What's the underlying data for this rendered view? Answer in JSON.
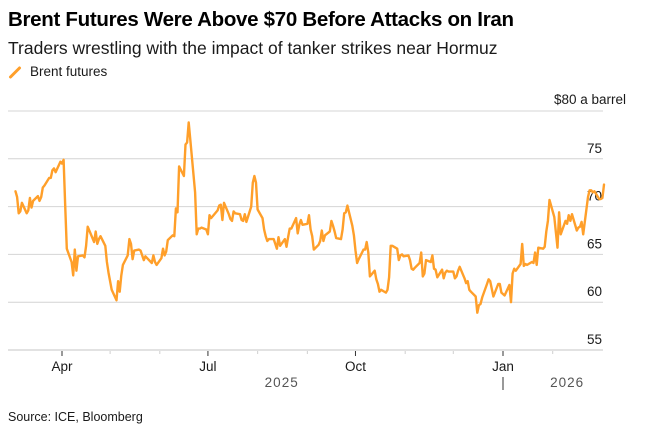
{
  "header": {
    "title": "Brent Futures Were Above $70 Before Attacks on Iran",
    "subtitle": "Traders wrestling with the impact of tanker strikes near Hormuz"
  },
  "legend": [
    {
      "label": "Brent futures",
      "color": "#ff9f2a",
      "icon": "line-slash-icon"
    }
  ],
  "footer": {
    "source": "Source: ICE, Bloomberg"
  },
  "chart_data": {
    "type": "line",
    "title": "Brent Futures Were Above $70 Before Attacks on Iran",
    "subtitle": "Traders wrestling with the impact of tanker strikes near Hormuz",
    "xlabel": "",
    "ylabel": "$ a barrel",
    "unit_label": "$80 a barrel",
    "ylim": [
      55,
      80
    ],
    "yticks": [
      55,
      60,
      65,
      70,
      75,
      80
    ],
    "ytick_labels": [
      "55",
      "60",
      "65",
      "70",
      "75",
      "$80 a barrel"
    ],
    "y_axis_side": "right",
    "grid": true,
    "xlim": [
      "2025-03-03",
      "2026-03-14"
    ],
    "xticks_major": [
      {
        "date": "2025-04-01",
        "label": "Apr"
      },
      {
        "date": "2025-07-01",
        "label": "Jul"
      },
      {
        "date": "2025-10-01",
        "label": "Oct"
      },
      {
        "date": "2026-01-01",
        "label": "Jan"
      }
    ],
    "xticks_minor": [
      "2025-05-01",
      "2025-06-01",
      "2025-08-01",
      "2025-09-01",
      "2025-11-01",
      "2025-12-01",
      "2026-02-01"
    ],
    "year_labels": [
      {
        "label": "2025",
        "center": "2025-08-16"
      },
      {
        "label": "2026",
        "center": "2026-02-10",
        "divider": "2026-01-01"
      }
    ],
    "legend_position": "top-left",
    "series": [
      {
        "name": "Brent futures",
        "color": "#ff9f2a",
        "points": [
          [
            "2025-03-03",
            71.6
          ],
          [
            "2025-03-04",
            71.0
          ],
          [
            "2025-03-05",
            69.3
          ],
          [
            "2025-03-06",
            69.5
          ],
          [
            "2025-03-07",
            70.4
          ],
          [
            "2025-03-10",
            69.3
          ],
          [
            "2025-03-11",
            69.6
          ],
          [
            "2025-03-12",
            70.9
          ],
          [
            "2025-03-13",
            69.9
          ],
          [
            "2025-03-14",
            70.6
          ],
          [
            "2025-03-17",
            71.1
          ],
          [
            "2025-03-18",
            70.6
          ],
          [
            "2025-03-19",
            71.0
          ],
          [
            "2025-03-20",
            72.0
          ],
          [
            "2025-03-21",
            72.2
          ],
          [
            "2025-03-24",
            73.0
          ],
          [
            "2025-03-25",
            73.0
          ],
          [
            "2025-03-26",
            73.8
          ],
          [
            "2025-03-27",
            74.0
          ],
          [
            "2025-03-28",
            73.6
          ],
          [
            "2025-03-31",
            74.7
          ],
          [
            "2025-04-01",
            74.5
          ],
          [
            "2025-04-02",
            74.9
          ],
          [
            "2025-04-03",
            70.1
          ],
          [
            "2025-04-04",
            65.6
          ],
          [
            "2025-04-07",
            64.2
          ],
          [
            "2025-04-08",
            62.8
          ],
          [
            "2025-04-09",
            65.5
          ],
          [
            "2025-04-10",
            63.3
          ],
          [
            "2025-04-11",
            64.8
          ],
          [
            "2025-04-14",
            64.9
          ],
          [
            "2025-04-15",
            64.7
          ],
          [
            "2025-04-16",
            65.9
          ],
          [
            "2025-04-17",
            67.9
          ],
          [
            "2025-04-21",
            66.3
          ],
          [
            "2025-04-22",
            67.4
          ],
          [
            "2025-04-23",
            66.1
          ],
          [
            "2025-04-24",
            66.6
          ],
          [
            "2025-04-25",
            66.9
          ],
          [
            "2025-04-28",
            65.9
          ],
          [
            "2025-04-29",
            64.2
          ],
          [
            "2025-04-30",
            63.1
          ],
          [
            "2025-05-02",
            61.3
          ],
          [
            "2025-05-05",
            60.2
          ],
          [
            "2025-05-06",
            62.2
          ],
          [
            "2025-05-07",
            61.1
          ],
          [
            "2025-05-08",
            62.8
          ],
          [
            "2025-05-09",
            63.9
          ],
          [
            "2025-05-12",
            64.9
          ],
          [
            "2025-05-13",
            66.6
          ],
          [
            "2025-05-14",
            66.1
          ],
          [
            "2025-05-15",
            64.5
          ],
          [
            "2025-05-16",
            65.4
          ],
          [
            "2025-05-19",
            65.5
          ],
          [
            "2025-05-20",
            65.4
          ],
          [
            "2025-05-21",
            64.9
          ],
          [
            "2025-05-22",
            64.4
          ],
          [
            "2025-05-23",
            64.8
          ],
          [
            "2025-05-27",
            64.1
          ],
          [
            "2025-05-28",
            64.9
          ],
          [
            "2025-05-29",
            64.2
          ],
          [
            "2025-05-30",
            63.9
          ],
          [
            "2025-06-02",
            64.6
          ],
          [
            "2025-06-03",
            65.6
          ],
          [
            "2025-06-04",
            64.9
          ],
          [
            "2025-06-05",
            65.3
          ],
          [
            "2025-06-06",
            66.5
          ],
          [
            "2025-06-09",
            67.0
          ],
          [
            "2025-06-10",
            66.9
          ],
          [
            "2025-06-11",
            69.8
          ],
          [
            "2025-06-12",
            69.4
          ],
          [
            "2025-06-13",
            74.2
          ],
          [
            "2025-06-16",
            73.2
          ],
          [
            "2025-06-17",
            76.5
          ],
          [
            "2025-06-18",
            76.7
          ],
          [
            "2025-06-19",
            78.8
          ],
          [
            "2025-06-20",
            77.0
          ],
          [
            "2025-06-23",
            71.5
          ],
          [
            "2025-06-24",
            67.1
          ],
          [
            "2025-06-25",
            67.7
          ],
          [
            "2025-06-26",
            67.7
          ],
          [
            "2025-06-27",
            67.8
          ],
          [
            "2025-06-30",
            67.6
          ],
          [
            "2025-07-01",
            67.1
          ],
          [
            "2025-07-02",
            69.1
          ],
          [
            "2025-07-03",
            68.8
          ],
          [
            "2025-07-07",
            69.6
          ],
          [
            "2025-07-08",
            70.1
          ],
          [
            "2025-07-09",
            70.2
          ],
          [
            "2025-07-10",
            68.6
          ],
          [
            "2025-07-11",
            70.4
          ],
          [
            "2025-07-14",
            69.2
          ],
          [
            "2025-07-15",
            68.7
          ],
          [
            "2025-07-16",
            68.5
          ],
          [
            "2025-07-17",
            69.5
          ],
          [
            "2025-07-18",
            69.3
          ],
          [
            "2025-07-21",
            69.2
          ],
          [
            "2025-07-22",
            68.6
          ],
          [
            "2025-07-23",
            68.5
          ],
          [
            "2025-07-24",
            69.2
          ],
          [
            "2025-07-25",
            68.4
          ],
          [
            "2025-07-28",
            70.0
          ],
          [
            "2025-07-29",
            72.5
          ],
          [
            "2025-07-30",
            73.2
          ],
          [
            "2025-07-31",
            72.5
          ],
          [
            "2025-08-01",
            69.7
          ],
          [
            "2025-08-04",
            68.8
          ],
          [
            "2025-08-05",
            67.6
          ],
          [
            "2025-08-06",
            66.9
          ],
          [
            "2025-08-07",
            66.4
          ],
          [
            "2025-08-08",
            66.6
          ],
          [
            "2025-08-11",
            66.6
          ],
          [
            "2025-08-12",
            66.1
          ],
          [
            "2025-08-13",
            65.6
          ],
          [
            "2025-08-14",
            66.8
          ],
          [
            "2025-08-15",
            65.9
          ],
          [
            "2025-08-18",
            66.6
          ],
          [
            "2025-08-19",
            65.8
          ],
          [
            "2025-08-20",
            66.8
          ],
          [
            "2025-08-21",
            67.7
          ],
          [
            "2025-08-22",
            67.7
          ],
          [
            "2025-08-25",
            68.8
          ],
          [
            "2025-08-26",
            67.2
          ],
          [
            "2025-08-27",
            68.1
          ],
          [
            "2025-08-28",
            68.6
          ],
          [
            "2025-08-29",
            68.1
          ],
          [
            "2025-09-01",
            68.2
          ],
          [
            "2025-09-02",
            69.1
          ],
          [
            "2025-09-03",
            67.6
          ],
          [
            "2025-09-04",
            66.9
          ],
          [
            "2025-09-05",
            65.5
          ],
          [
            "2025-09-08",
            66.0
          ],
          [
            "2025-09-09",
            66.4
          ],
          [
            "2025-09-10",
            67.5
          ],
          [
            "2025-09-11",
            66.4
          ],
          [
            "2025-09-12",
            67.0
          ],
          [
            "2025-09-15",
            67.4
          ],
          [
            "2025-09-16",
            68.5
          ],
          [
            "2025-09-17",
            68.0
          ],
          [
            "2025-09-18",
            67.4
          ],
          [
            "2025-09-19",
            66.7
          ],
          [
            "2025-09-22",
            66.6
          ],
          [
            "2025-09-23",
            67.6
          ],
          [
            "2025-09-24",
            69.3
          ],
          [
            "2025-09-25",
            69.4
          ],
          [
            "2025-09-26",
            70.1
          ],
          [
            "2025-09-29",
            68.0
          ],
          [
            "2025-09-30",
            67.0
          ],
          [
            "2025-10-01",
            65.4
          ],
          [
            "2025-10-02",
            64.1
          ],
          [
            "2025-10-03",
            64.5
          ],
          [
            "2025-10-06",
            65.5
          ],
          [
            "2025-10-07",
            65.5
          ],
          [
            "2025-10-08",
            66.3
          ],
          [
            "2025-10-09",
            65.2
          ],
          [
            "2025-10-10",
            62.7
          ],
          [
            "2025-10-13",
            63.3
          ],
          [
            "2025-10-14",
            62.4
          ],
          [
            "2025-10-15",
            61.9
          ],
          [
            "2025-10-16",
            61.1
          ],
          [
            "2025-10-17",
            61.3
          ],
          [
            "2025-10-20",
            61.0
          ],
          [
            "2025-10-21",
            61.3
          ],
          [
            "2025-10-22",
            62.6
          ],
          [
            "2025-10-23",
            65.9
          ],
          [
            "2025-10-24",
            65.9
          ],
          [
            "2025-10-27",
            65.6
          ],
          [
            "2025-10-28",
            64.4
          ],
          [
            "2025-10-29",
            64.9
          ],
          [
            "2025-10-30",
            65.0
          ],
          [
            "2025-10-31",
            64.8
          ],
          [
            "2025-11-03",
            64.9
          ],
          [
            "2025-11-04",
            64.4
          ],
          [
            "2025-11-05",
            63.5
          ],
          [
            "2025-11-06",
            63.4
          ],
          [
            "2025-11-07",
            63.6
          ],
          [
            "2025-11-10",
            64.1
          ],
          [
            "2025-11-11",
            65.2
          ],
          [
            "2025-11-12",
            62.7
          ],
          [
            "2025-11-13",
            63.0
          ],
          [
            "2025-11-14",
            64.4
          ],
          [
            "2025-11-17",
            64.2
          ],
          [
            "2025-11-18",
            64.9
          ],
          [
            "2025-11-19",
            63.5
          ],
          [
            "2025-11-20",
            63.4
          ],
          [
            "2025-11-21",
            62.6
          ],
          [
            "2025-11-24",
            63.4
          ],
          [
            "2025-11-25",
            62.5
          ],
          [
            "2025-11-26",
            63.1
          ],
          [
            "2025-11-27",
            63.3
          ],
          [
            "2025-11-28",
            63.2
          ],
          [
            "2025-12-01",
            63.2
          ],
          [
            "2025-12-02",
            62.5
          ],
          [
            "2025-12-03",
            62.7
          ],
          [
            "2025-12-04",
            63.3
          ],
          [
            "2025-12-05",
            63.7
          ],
          [
            "2025-12-08",
            62.5
          ],
          [
            "2025-12-09",
            62.0
          ],
          [
            "2025-12-10",
            62.2
          ],
          [
            "2025-12-11",
            61.3
          ],
          [
            "2025-12-12",
            61.1
          ],
          [
            "2025-12-15",
            60.6
          ],
          [
            "2025-12-16",
            58.9
          ],
          [
            "2025-12-17",
            59.7
          ],
          [
            "2025-12-18",
            59.8
          ],
          [
            "2025-12-19",
            60.5
          ],
          [
            "2025-12-22",
            61.9
          ],
          [
            "2025-12-23",
            62.4
          ],
          [
            "2025-12-24",
            62.2
          ],
          [
            "2025-12-26",
            60.6
          ],
          [
            "2025-12-29",
            61.9
          ],
          [
            "2025-12-30",
            61.9
          ],
          [
            "2025-12-31",
            61.0
          ],
          [
            "2026-01-02",
            60.7
          ],
          [
            "2026-01-05",
            61.8
          ],
          [
            "2026-01-06",
            60.0
          ],
          [
            "2026-01-07",
            63.0
          ],
          [
            "2026-01-08",
            63.5
          ],
          [
            "2026-01-09",
            63.3
          ],
          [
            "2026-01-12",
            64.0
          ],
          [
            "2026-01-13",
            66.1
          ],
          [
            "2026-01-14",
            63.8
          ],
          [
            "2026-01-15",
            64.0
          ],
          [
            "2026-01-16",
            63.9
          ],
          [
            "2026-01-19",
            64.2
          ],
          [
            "2026-01-20",
            64.1
          ],
          [
            "2026-01-21",
            65.2
          ],
          [
            "2026-01-22",
            63.9
          ],
          [
            "2026-01-23",
            65.7
          ],
          [
            "2026-01-26",
            65.6
          ],
          [
            "2026-01-27",
            65.8
          ],
          [
            "2026-01-28",
            67.4
          ],
          [
            "2026-01-29",
            68.5
          ],
          [
            "2026-01-30",
            70.7
          ],
          [
            "2026-02-02",
            68.9
          ],
          [
            "2026-02-03",
            67.3
          ],
          [
            "2026-02-04",
            65.7
          ],
          [
            "2026-02-05",
            69.4
          ],
          [
            "2026-02-06",
            67.1
          ],
          [
            "2026-02-09",
            68.5
          ],
          [
            "2026-02-10",
            68.2
          ],
          [
            "2026-02-11",
            69.1
          ],
          [
            "2026-02-12",
            68.5
          ],
          [
            "2026-02-13",
            69.2
          ],
          [
            "2026-02-16",
            67.5
          ],
          [
            "2026-02-17",
            67.8
          ],
          [
            "2026-02-18",
            67.9
          ],
          [
            "2026-02-19",
            68.4
          ],
          [
            "2026-02-20",
            67.1
          ],
          [
            "2026-02-23",
            71.0
          ],
          [
            "2026-02-24",
            71.7
          ],
          [
            "2026-02-25",
            71.7
          ],
          [
            "2026-02-26",
            71.5
          ],
          [
            "2026-02-27",
            71.6
          ],
          [
            "2026-03-02",
            70.8
          ],
          [
            "2026-03-03",
            70.8
          ],
          [
            "2026-03-04",
            70.9
          ],
          [
            "2026-03-05",
            72.3
          ]
        ]
      }
    ]
  }
}
